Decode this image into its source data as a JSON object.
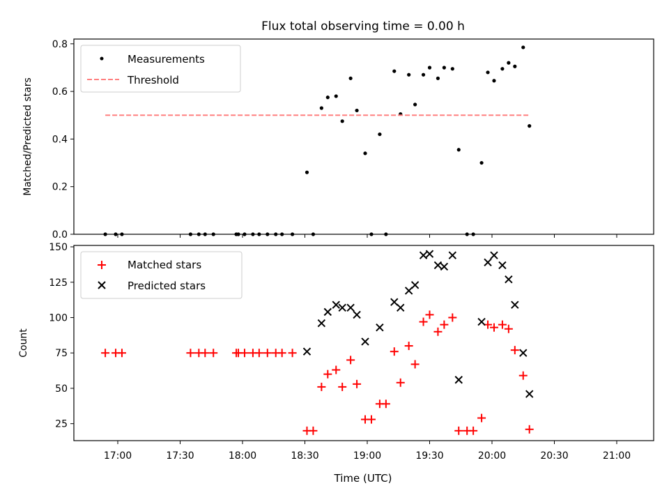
{
  "chart_data": [
    {
      "type": "scatter",
      "title": "Flux total observing time = 0.00 h",
      "xlabel": "",
      "ylabel": "Matched/Predicted stars",
      "ylim": [
        0,
        0.82
      ],
      "yticks": [
        0.0,
        0.2,
        0.4,
        0.6,
        0.8
      ],
      "ytick_labels": [
        "0.0",
        "0.2",
        "0.4",
        "0.6",
        "0.8"
      ],
      "grid": false,
      "legend_position": "top-left",
      "series": [
        {
          "name": "Measurements",
          "marker": "dot",
          "color": "#000000",
          "points": [
            [
              "16:54",
              0.0
            ],
            [
              "16:59",
              0.0
            ],
            [
              "17:02",
              0.0
            ],
            [
              "17:35",
              0.0
            ],
            [
              "17:39",
              0.0
            ],
            [
              "17:42",
              0.0
            ],
            [
              "17:46",
              0.0
            ],
            [
              "17:57",
              0.0
            ],
            [
              "17:58",
              0.0
            ],
            [
              "18:01",
              0.0
            ],
            [
              "18:05",
              0.0
            ],
            [
              "18:08",
              0.0
            ],
            [
              "18:12",
              0.0
            ],
            [
              "18:16",
              0.0
            ],
            [
              "18:19",
              0.0
            ],
            [
              "18:24",
              0.0
            ],
            [
              "18:31",
              0.26
            ],
            [
              "18:34",
              0.0
            ],
            [
              "18:38",
              0.53
            ],
            [
              "18:41",
              0.575
            ],
            [
              "18:45",
              0.58
            ],
            [
              "18:48",
              0.475
            ],
            [
              "18:52",
              0.655
            ],
            [
              "18:55",
              0.52
            ],
            [
              "18:59",
              0.34
            ],
            [
              "19:02",
              0.0
            ],
            [
              "19:06",
              0.42
            ],
            [
              "19:09",
              0.0
            ],
            [
              "19:13",
              0.685
            ],
            [
              "19:16",
              0.505
            ],
            [
              "19:20",
              0.67
            ],
            [
              "19:23",
              0.545
            ],
            [
              "19:27",
              0.67
            ],
            [
              "19:30",
              0.7
            ],
            [
              "19:34",
              0.655
            ],
            [
              "19:37",
              0.7
            ],
            [
              "19:41",
              0.695
            ],
            [
              "19:44",
              0.355
            ],
            [
              "19:48",
              0.0
            ],
            [
              "19:51",
              0.0
            ],
            [
              "19:55",
              0.3
            ],
            [
              "19:58",
              0.68
            ],
            [
              "20:01",
              0.645
            ],
            [
              "20:05",
              0.695
            ],
            [
              "20:08",
              0.72
            ],
            [
              "20:11",
              0.705
            ],
            [
              "20:15",
              0.785
            ],
            [
              "20:18",
              0.455
            ]
          ]
        },
        {
          "name": "Threshold",
          "style": "dashed-line",
          "color": "#ff7f7f",
          "x": [
            "16:54",
            "20:18"
          ],
          "y": [
            0.5,
            0.5
          ]
        }
      ]
    },
    {
      "type": "scatter",
      "title": "",
      "xlabel": "Time (UTC)",
      "ylabel": "Count",
      "ylim": [
        13,
        151
      ],
      "yticks": [
        25,
        50,
        75,
        100,
        125,
        150
      ],
      "ytick_labels": [
        "25",
        "50",
        "75",
        "100",
        "125",
        "150"
      ],
      "xticks": [
        "17:00",
        "17:30",
        "18:00",
        "18:30",
        "19:00",
        "19:30",
        "20:00",
        "20:30",
        "21:00"
      ],
      "grid": false,
      "legend_position": "top-left",
      "series": [
        {
          "name": "Matched stars",
          "marker": "plus",
          "color": "#ff0000",
          "points": [
            [
              "16:54",
              75
            ],
            [
              "16:59",
              75
            ],
            [
              "17:02",
              75
            ],
            [
              "17:35",
              75
            ],
            [
              "17:39",
              75
            ],
            [
              "17:42",
              75
            ],
            [
              "17:46",
              75
            ],
            [
              "17:57",
              75
            ],
            [
              "17:58",
              75
            ],
            [
              "18:01",
              75
            ],
            [
              "18:05",
              75
            ],
            [
              "18:08",
              75
            ],
            [
              "18:12",
              75
            ],
            [
              "18:16",
              75
            ],
            [
              "18:19",
              75
            ],
            [
              "18:24",
              75
            ],
            [
              "18:31",
              20
            ],
            [
              "18:34",
              20
            ],
            [
              "18:38",
              51
            ],
            [
              "18:41",
              60
            ],
            [
              "18:45",
              63
            ],
            [
              "18:48",
              51
            ],
            [
              "18:52",
              70
            ],
            [
              "18:55",
              53
            ],
            [
              "18:59",
              28
            ],
            [
              "19:02",
              28
            ],
            [
              "19:06",
              39
            ],
            [
              "19:09",
              39
            ],
            [
              "19:13",
              76
            ],
            [
              "19:16",
              54
            ],
            [
              "19:20",
              80
            ],
            [
              "19:23",
              67
            ],
            [
              "19:27",
              97
            ],
            [
              "19:30",
              102
            ],
            [
              "19:34",
              90
            ],
            [
              "19:37",
              95
            ],
            [
              "19:41",
              100
            ],
            [
              "19:44",
              20
            ],
            [
              "19:48",
              20
            ],
            [
              "19:51",
              20
            ],
            [
              "19:55",
              29
            ],
            [
              "19:58",
              95
            ],
            [
              "20:01",
              93
            ],
            [
              "20:05",
              95
            ],
            [
              "20:08",
              92
            ],
            [
              "20:11",
              77
            ],
            [
              "20:15",
              59
            ],
            [
              "20:18",
              21
            ]
          ]
        },
        {
          "name": "Predicted stars",
          "marker": "x",
          "color": "#000000",
          "points": [
            [
              "18:31",
              76
            ],
            [
              "18:38",
              96
            ],
            [
              "18:41",
              104
            ],
            [
              "18:45",
              109
            ],
            [
              "18:48",
              107
            ],
            [
              "18:52",
              107
            ],
            [
              "18:55",
              102
            ],
            [
              "18:59",
              83
            ],
            [
              "19:06",
              93
            ],
            [
              "19:13",
              111
            ],
            [
              "19:16",
              107
            ],
            [
              "19:20",
              119
            ],
            [
              "19:23",
              123
            ],
            [
              "19:27",
              144
            ],
            [
              "19:30",
              145
            ],
            [
              "19:34",
              137
            ],
            [
              "19:37",
              136
            ],
            [
              "19:41",
              144
            ],
            [
              "19:44",
              56
            ],
            [
              "19:55",
              97
            ],
            [
              "19:58",
              139
            ],
            [
              "20:01",
              144
            ],
            [
              "20:05",
              137
            ],
            [
              "20:08",
              127
            ],
            [
              "20:11",
              109
            ],
            [
              "20:15",
              75
            ],
            [
              "20:18",
              46
            ]
          ]
        }
      ]
    }
  ]
}
